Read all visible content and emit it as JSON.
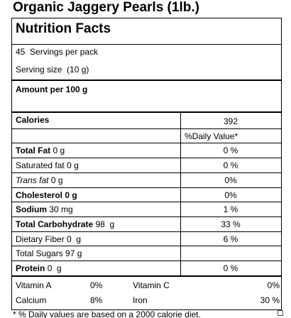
{
  "title": "Organic Jaggery Pearls (1lb.)",
  "panel": {
    "heading": "Nutrition Facts",
    "servings": "45  Servings per pack",
    "serving_size": "Serving size  (10 g)",
    "amount_per": "Amount per 100 g",
    "calories": {
      "label": "Calories",
      "value": "392"
    },
    "daily_value_header": "%Daily Value*",
    "nutrients": [
      {
        "name": "Total Fat",
        "amount": "0 g",
        "dv": "0 %"
      },
      {
        "name": "Saturated fat",
        "amount": "0 g",
        "dv": "0 %"
      },
      {
        "name": "Trans fat",
        "amount": "0 g",
        "dv": "0%"
      },
      {
        "name": "Cholesterol",
        "amount": "0 g",
        "dv": "0%"
      },
      {
        "name": "Sodium",
        "amount": "30 mg",
        "dv": "1 %"
      },
      {
        "name": "Total Carbohydrate",
        "amount": "98  g",
        "dv": "33 %"
      },
      {
        "name": "Dietary Fiber",
        "amount": "0  g",
        "dv": "6 %"
      },
      {
        "name": "Total Sugars",
        "amount": "97 g"
      },
      {
        "name": "Protein",
        "amount": "0  g",
        "dv": "0 %"
      }
    ],
    "vitamins": [
      [
        "Vitamin A",
        "0%",
        "Vitamin C",
        "0%"
      ],
      [
        "Calcium",
        "8%",
        "Iron",
        "30 %"
      ]
    ]
  },
  "footnote": "* % Daily values are based on a 2000 calorie diet."
}
